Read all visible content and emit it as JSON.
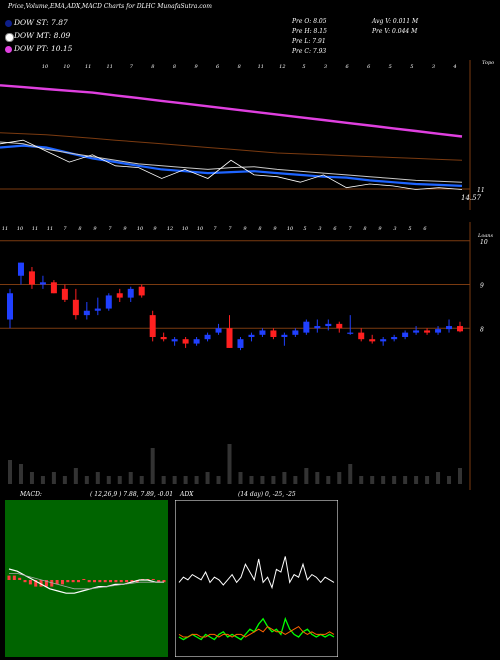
{
  "header": {
    "title": "Price,Volume,EMA,ADX,MACD Charts for DLHC MunafaSutra.com"
  },
  "legend": [
    {
      "label": "DOW ST: 7.87",
      "color": "#0e1f8a"
    },
    {
      "label": "DOW MT: 8.09",
      "color": "#ffffff"
    },
    {
      "label": "DOW PT: 10.15",
      "color": "#e040e0"
    }
  ],
  "stats": {
    "open": "Pre O: 8.05",
    "high": "Pre H: 8.15",
    "low": "Pre L: 7.91",
    "close": "Pre C: 7.93",
    "avg_volume": "Avg V: 0.011 M",
    "pre_volume": "Pre V: 0.044 M"
  },
  "chart_data": [
    {
      "type": "line",
      "title": "",
      "note": "price with moving averages",
      "corner_label": "Topo",
      "y_labels": [
        "11",
        "14.57"
      ],
      "top_digits": [
        "10",
        "10",
        "11",
        "11",
        "7",
        "8",
        "8",
        "9",
        "6",
        "8",
        "11",
        "12",
        "5",
        "3",
        "6",
        "6",
        "5",
        "5",
        "3",
        "4"
      ],
      "series": [
        {
          "name": "",
          "color": "#e040e0",
          "values": [
            14.0,
            13.9,
            13.8,
            13.7,
            13.6,
            13.45,
            13.3,
            13.15,
            13.0,
            12.85,
            12.7,
            12.55,
            12.4,
            12.25,
            12.1,
            11.95,
            11.8,
            11.65,
            11.5,
            11.35,
            11.2
          ]
        },
        {
          "name": "",
          "color": "#7a3a10",
          "values": [
            11.4,
            11.35,
            11.3,
            11.2,
            11.1,
            11.0,
            10.9,
            10.8,
            10.7,
            10.6,
            10.5,
            10.4,
            10.3,
            10.25,
            10.2,
            10.15,
            10.1,
            10.05,
            10.0,
            9.95,
            9.9
          ]
        },
        {
          "name": "",
          "color": "#1e64ff",
          "values": [
            10.6,
            10.7,
            10.6,
            10.3,
            10.0,
            9.8,
            9.6,
            9.4,
            9.3,
            9.2,
            9.25,
            9.3,
            9.2,
            9.1,
            9.0,
            8.95,
            8.8,
            8.7,
            8.6,
            8.55,
            8.5
          ]
        },
        {
          "name": "",
          "color": "#c8c8c8",
          "values": [
            10.9,
            10.8,
            10.5,
            10.3,
            10.1,
            9.9,
            9.7,
            9.6,
            9.5,
            9.4,
            9.5,
            9.55,
            9.4,
            9.3,
            9.2,
            9.1,
            9.0,
            8.9,
            8.8,
            8.75,
            8.7
          ]
        },
        {
          "name": "",
          "color": "#ffffff",
          "values": [
            10.8,
            11.0,
            10.4,
            9.8,
            10.2,
            9.6,
            9.5,
            8.9,
            9.4,
            8.9,
            9.9,
            9.1,
            9.0,
            8.7,
            9.1,
            8.4,
            8.6,
            8.5,
            8.3,
            8.4,
            8.3
          ]
        }
      ]
    },
    {
      "type": "bar",
      "title": "",
      "note": "daily candles with volume",
      "corner_label": "Loans",
      "y_labels": [
        "10",
        "9",
        "8"
      ],
      "ylim": [
        7.0,
        10.2
      ],
      "top_digits": [
        "11",
        "10",
        "11",
        "11",
        "7",
        "8",
        "9",
        "7",
        "9",
        "10",
        "9",
        "12",
        "10",
        "10",
        "7",
        "7",
        "9",
        "8",
        "9",
        "10",
        "5",
        "3",
        "6",
        "7",
        "8",
        "9",
        "3",
        "5",
        "6"
      ],
      "candles": [
        {
          "o": 8.2,
          "h": 8.9,
          "l": 8.0,
          "c": 8.8
        },
        {
          "o": 9.2,
          "h": 9.5,
          "l": 9.0,
          "c": 9.5
        },
        {
          "o": 9.3,
          "h": 9.4,
          "l": 8.9,
          "c": 9.0
        },
        {
          "o": 9.0,
          "h": 9.2,
          "l": 8.9,
          "c": 9.05
        },
        {
          "o": 9.05,
          "h": 9.1,
          "l": 8.8,
          "c": 8.8
        },
        {
          "o": 8.9,
          "h": 9.0,
          "l": 8.6,
          "c": 8.65
        },
        {
          "o": 8.65,
          "h": 8.9,
          "l": 8.2,
          "c": 8.3
        },
        {
          "o": 8.3,
          "h": 8.6,
          "l": 8.2,
          "c": 8.4
        },
        {
          "o": 8.4,
          "h": 8.7,
          "l": 8.3,
          "c": 8.45
        },
        {
          "o": 8.45,
          "h": 8.8,
          "l": 8.4,
          "c": 8.75
        },
        {
          "o": 8.8,
          "h": 8.9,
          "l": 8.6,
          "c": 8.7
        },
        {
          "o": 8.7,
          "h": 8.95,
          "l": 8.6,
          "c": 8.9
        },
        {
          "o": 8.95,
          "h": 9.0,
          "l": 8.7,
          "c": 8.75
        },
        {
          "o": 8.3,
          "h": 8.4,
          "l": 7.7,
          "c": 7.8
        },
        {
          "o": 7.8,
          "h": 7.9,
          "l": 7.7,
          "c": 7.75
        },
        {
          "o": 7.7,
          "h": 7.8,
          "l": 7.6,
          "c": 7.75
        },
        {
          "o": 7.75,
          "h": 7.8,
          "l": 7.55,
          "c": 7.65
        },
        {
          "o": 7.65,
          "h": 7.8,
          "l": 7.6,
          "c": 7.75
        },
        {
          "o": 7.75,
          "h": 7.9,
          "l": 7.7,
          "c": 7.85
        },
        {
          "o": 7.9,
          "h": 8.1,
          "l": 7.85,
          "c": 8.0
        },
        {
          "o": 8.0,
          "h": 8.3,
          "l": 7.55,
          "c": 7.55
        },
        {
          "o": 7.55,
          "h": 7.8,
          "l": 7.5,
          "c": 7.75
        },
        {
          "o": 7.8,
          "h": 7.9,
          "l": 7.7,
          "c": 7.85
        },
        {
          "o": 7.85,
          "h": 8.0,
          "l": 7.8,
          "c": 7.95
        },
        {
          "o": 7.95,
          "h": 8.0,
          "l": 7.75,
          "c": 7.8
        },
        {
          "o": 7.8,
          "h": 7.9,
          "l": 7.6,
          "c": 7.85
        },
        {
          "o": 7.85,
          "h": 8.0,
          "l": 7.8,
          "c": 7.95
        },
        {
          "o": 7.9,
          "h": 8.2,
          "l": 7.85,
          "c": 8.15
        },
        {
          "o": 8.0,
          "h": 8.2,
          "l": 7.9,
          "c": 8.05
        },
        {
          "o": 8.05,
          "h": 8.2,
          "l": 7.95,
          "c": 8.1
        },
        {
          "o": 8.1,
          "h": 8.15,
          "l": 7.9,
          "c": 8.0
        },
        {
          "o": 7.9,
          "h": 8.3,
          "l": 7.85,
          "c": 7.9
        },
        {
          "o": 7.9,
          "h": 8.0,
          "l": 7.7,
          "c": 7.75
        },
        {
          "o": 7.75,
          "h": 7.85,
          "l": 7.65,
          "c": 7.7
        },
        {
          "o": 7.7,
          "h": 7.8,
          "l": 7.6,
          "c": 7.75
        },
        {
          "o": 7.75,
          "h": 7.85,
          "l": 7.7,
          "c": 7.8
        },
        {
          "o": 7.8,
          "h": 7.95,
          "l": 7.75,
          "c": 7.9
        },
        {
          "o": 7.9,
          "h": 8.05,
          "l": 7.85,
          "c": 7.95
        },
        {
          "o": 7.95,
          "h": 8.0,
          "l": 7.85,
          "c": 7.9
        },
        {
          "o": 7.9,
          "h": 8.05,
          "l": 7.85,
          "c": 7.98
        },
        {
          "o": 7.98,
          "h": 8.2,
          "l": 7.9,
          "c": 8.05
        },
        {
          "o": 8.05,
          "h": 8.15,
          "l": 7.91,
          "c": 7.93
        }
      ],
      "volume": [
        0.6,
        0.5,
        0.3,
        0.2,
        0.3,
        0.2,
        0.4,
        0.2,
        0.3,
        0.2,
        0.2,
        0.3,
        0.2,
        0.9,
        0.2,
        0.2,
        0.2,
        0.2,
        0.3,
        0.2,
        1.0,
        0.3,
        0.2,
        0.2,
        0.2,
        0.3,
        0.2,
        0.4,
        0.3,
        0.2,
        0.3,
        0.5,
        0.2,
        0.2,
        0.2,
        0.2,
        0.2,
        0.2,
        0.2,
        0.3,
        0.2,
        0.4
      ]
    },
    {
      "type": "line",
      "title": "MACD:",
      "params": "( 12,26,9 ) 7.88, 7.89, -0.01",
      "series": [
        {
          "name": "",
          "color": "#ffffff",
          "values": [
            0.05,
            0.04,
            0.02,
            0.0,
            -0.02,
            -0.04,
            -0.05,
            -0.06,
            -0.06,
            -0.05,
            -0.04,
            -0.03,
            -0.03,
            -0.02,
            -0.02,
            -0.01,
            0.0,
            0.0,
            -0.01,
            -0.01
          ]
        },
        {
          "name": "",
          "color": "#aaaaaa",
          "values": [
            0.03,
            0.03,
            0.02,
            0.01,
            0.0,
            -0.01,
            -0.02,
            -0.03,
            -0.04,
            -0.04,
            -0.04,
            -0.035,
            -0.03,
            -0.025,
            -0.02,
            -0.015,
            -0.01,
            -0.01,
            -0.01,
            -0.01
          ]
        }
      ],
      "histogram": [
        0.02,
        0.02,
        0.01,
        -0.01,
        -0.02,
        -0.03,
        -0.03,
        -0.03,
        -0.03,
        -0.02,
        -0.02,
        -0.01,
        -0.01,
        -0.01,
        0.0,
        -0.01,
        -0.01,
        -0.01,
        -0.01,
        -0.01,
        -0.01,
        -0.01,
        -0.01,
        -0.01,
        -0.01,
        0.0,
        0.0,
        0.0,
        -0.01,
        -0.01
      ]
    },
    {
      "type": "line",
      "title": "ADX",
      "params": "(14 day) 0, -25, -25",
      "series": [
        {
          "name": "",
          "color": "#ffffff",
          "values": [
            26,
            28,
            27,
            29,
            28,
            27,
            30,
            26,
            28,
            27,
            25,
            27,
            29,
            26,
            28,
            33,
            30,
            27,
            35,
            26,
            28,
            24,
            31,
            30,
            36,
            26,
            29,
            28,
            33,
            27,
            29,
            28,
            26,
            28,
            27,
            26
          ]
        },
        {
          "name": "",
          "color": "#00ff00",
          "values": [
            5,
            4,
            5,
            6,
            5,
            4,
            6,
            5,
            4,
            6,
            7,
            5,
            6,
            5,
            4,
            6,
            8,
            7,
            10,
            12,
            9,
            7,
            8,
            6,
            12,
            8,
            6,
            5,
            7,
            8,
            6,
            5,
            6,
            5,
            6,
            5
          ]
        },
        {
          "name": "",
          "color": "#ff6400",
          "values": [
            6,
            5,
            5,
            6,
            6,
            5,
            5,
            6,
            6,
            5,
            6,
            6,
            5,
            6,
            6,
            5,
            6,
            7,
            8,
            7,
            9,
            8,
            7,
            7,
            6,
            7,
            8,
            9,
            7,
            6,
            7,
            6,
            6,
            6,
            7,
            6
          ]
        }
      ]
    }
  ]
}
